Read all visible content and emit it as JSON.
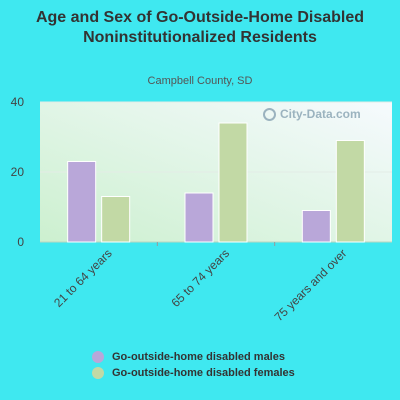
{
  "chart_data": {
    "type": "bar",
    "title": "Age and Sex of Go-Outside-Home Disabled Noninstitutionalized Residents",
    "subtitle": "Campbell County, SD",
    "categories": [
      "21 to 64 years",
      "65 to 74 years",
      "75 years and over"
    ],
    "series": [
      {
        "name": "Go-outside-home disabled males",
        "values": [
          23,
          14,
          9
        ],
        "color": "#b9a7d9"
      },
      {
        "name": "Go-outside-home disabled females",
        "values": [
          13,
          34,
          29
        ],
        "color": "#c2d9a5"
      }
    ],
    "ylim": [
      0,
      40
    ],
    "yticks": [
      0,
      20,
      40
    ],
    "grid": true,
    "legend": "bottom"
  },
  "watermark": "City-Data.com"
}
